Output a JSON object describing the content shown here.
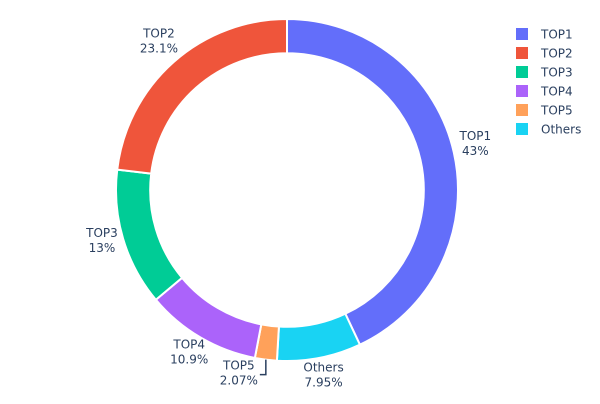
{
  "chart_data": {
    "type": "pie",
    "hole": 0.8,
    "labels": [
      "TOP1",
      "TOP2",
      "TOP3",
      "TOP4",
      "TOP5",
      "Others"
    ],
    "values": [
      43,
      23.1,
      13,
      10.9,
      2.07,
      7.95
    ],
    "percent_labels": [
      "43%",
      "23.1%",
      "13%",
      "10.9%",
      "2.07%",
      "7.95%"
    ],
    "colors": [
      "#636efa",
      "#ef553b",
      "#00cc96",
      "#ab63fa",
      "#ffa15a",
      "#19d3f3"
    ],
    "legend": {
      "placement": "top-right",
      "items": [
        "TOP1",
        "TOP2",
        "TOP3",
        "TOP4",
        "TOP5",
        "Others"
      ]
    }
  }
}
